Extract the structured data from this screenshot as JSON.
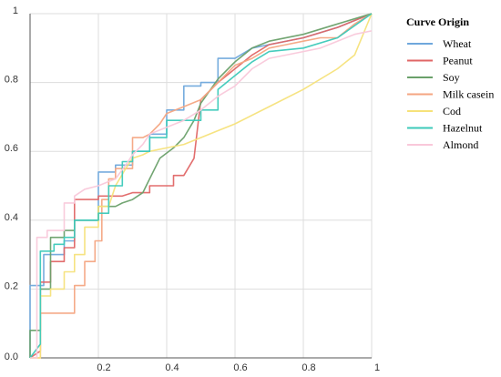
{
  "chart_data": {
    "type": "line",
    "xlim": [
      0,
      1
    ],
    "ylim": [
      0,
      1
    ],
    "x_ticks": [
      "0.2",
      "0.4",
      "0.6",
      "0.8",
      "1"
    ],
    "y_ticks": [
      "0.0",
      "0.2",
      "0.4",
      "0.6",
      "0.8",
      "1"
    ],
    "grid": true,
    "legend_title": "Curve Origin",
    "legend_position": "right",
    "series": [
      {
        "name": "Wheat",
        "color": "#6fa8dc",
        "points": [
          [
            0,
            0
          ],
          [
            0,
            0.21
          ],
          [
            0.04,
            0.21
          ],
          [
            0.04,
            0.3
          ],
          [
            0.1,
            0.3
          ],
          [
            0.1,
            0.34
          ],
          [
            0.13,
            0.34
          ],
          [
            0.13,
            0.4
          ],
          [
            0.2,
            0.4
          ],
          [
            0.2,
            0.54
          ],
          [
            0.25,
            0.54
          ],
          [
            0.25,
            0.56
          ],
          [
            0.3,
            0.56
          ],
          [
            0.3,
            0.6
          ],
          [
            0.35,
            0.6
          ],
          [
            0.35,
            0.65
          ],
          [
            0.4,
            0.65
          ],
          [
            0.4,
            0.72
          ],
          [
            0.45,
            0.72
          ],
          [
            0.45,
            0.79
          ],
          [
            0.5,
            0.79
          ],
          [
            0.5,
            0.8
          ],
          [
            0.55,
            0.8
          ],
          [
            0.55,
            0.87
          ],
          [
            0.6,
            0.87
          ],
          [
            0.65,
            0.9
          ],
          [
            0.7,
            0.91
          ],
          [
            0.8,
            0.93
          ],
          [
            0.9,
            0.96
          ],
          [
            1,
            1
          ]
        ]
      },
      {
        "name": "Peanut",
        "color": "#e06666",
        "points": [
          [
            0,
            0
          ],
          [
            0.03,
            0.02
          ],
          [
            0.03,
            0.22
          ],
          [
            0.06,
            0.22
          ],
          [
            0.06,
            0.28
          ],
          [
            0.1,
            0.28
          ],
          [
            0.1,
            0.32
          ],
          [
            0.13,
            0.32
          ],
          [
            0.13,
            0.46
          ],
          [
            0.2,
            0.46
          ],
          [
            0.2,
            0.47
          ],
          [
            0.27,
            0.47
          ],
          [
            0.3,
            0.48
          ],
          [
            0.35,
            0.48
          ],
          [
            0.35,
            0.5
          ],
          [
            0.42,
            0.5
          ],
          [
            0.42,
            0.53
          ],
          [
            0.45,
            0.53
          ],
          [
            0.48,
            0.58
          ],
          [
            0.5,
            0.75
          ],
          [
            0.55,
            0.8
          ],
          [
            0.6,
            0.84
          ],
          [
            0.65,
            0.88
          ],
          [
            0.7,
            0.91
          ],
          [
            0.8,
            0.93
          ],
          [
            0.9,
            0.96
          ],
          [
            1,
            1
          ]
        ]
      },
      {
        "name": "Soy",
        "color": "#6aa06a",
        "points": [
          [
            0,
            0
          ],
          [
            0,
            0.08
          ],
          [
            0.03,
            0.08
          ],
          [
            0.03,
            0.2
          ],
          [
            0.06,
            0.2
          ],
          [
            0.06,
            0.35
          ],
          [
            0.1,
            0.35
          ],
          [
            0.1,
            0.37
          ],
          [
            0.13,
            0.37
          ],
          [
            0.13,
            0.4
          ],
          [
            0.2,
            0.4
          ],
          [
            0.2,
            0.44
          ],
          [
            0.25,
            0.44
          ],
          [
            0.27,
            0.45
          ],
          [
            0.3,
            0.46
          ],
          [
            0.33,
            0.48
          ],
          [
            0.35,
            0.52
          ],
          [
            0.38,
            0.58
          ],
          [
            0.42,
            0.61
          ],
          [
            0.45,
            0.64
          ],
          [
            0.48,
            0.69
          ],
          [
            0.5,
            0.74
          ],
          [
            0.55,
            0.81
          ],
          [
            0.6,
            0.86
          ],
          [
            0.65,
            0.9
          ],
          [
            0.7,
            0.92
          ],
          [
            0.8,
            0.94
          ],
          [
            0.9,
            0.97
          ],
          [
            1,
            1
          ]
        ]
      },
      {
        "name": "Milk casein",
        "color": "#f4a582",
        "points": [
          [
            0,
            0
          ],
          [
            0.03,
            0
          ],
          [
            0.03,
            0.13
          ],
          [
            0.13,
            0.13
          ],
          [
            0.13,
            0.21
          ],
          [
            0.16,
            0.21
          ],
          [
            0.16,
            0.28
          ],
          [
            0.19,
            0.28
          ],
          [
            0.19,
            0.34
          ],
          [
            0.21,
            0.34
          ],
          [
            0.21,
            0.46
          ],
          [
            0.23,
            0.46
          ],
          [
            0.23,
            0.52
          ],
          [
            0.25,
            0.52
          ],
          [
            0.25,
            0.55
          ],
          [
            0.3,
            0.55
          ],
          [
            0.3,
            0.64
          ],
          [
            0.33,
            0.64
          ],
          [
            0.35,
            0.65
          ],
          [
            0.38,
            0.68
          ],
          [
            0.4,
            0.71
          ],
          [
            0.45,
            0.73
          ],
          [
            0.5,
            0.75
          ],
          [
            0.55,
            0.8
          ],
          [
            0.6,
            0.85
          ],
          [
            0.65,
            0.87
          ],
          [
            0.7,
            0.9
          ],
          [
            0.75,
            0.91
          ],
          [
            0.8,
            0.92
          ],
          [
            0.85,
            0.93
          ],
          [
            0.9,
            0.93
          ],
          [
            0.95,
            0.97
          ],
          [
            1,
            1
          ]
        ]
      },
      {
        "name": "Cod",
        "color": "#f6e27a",
        "points": [
          [
            0,
            0
          ],
          [
            0.03,
            0
          ],
          [
            0.03,
            0.18
          ],
          [
            0.06,
            0.18
          ],
          [
            0.06,
            0.2
          ],
          [
            0.1,
            0.2
          ],
          [
            0.1,
            0.25
          ],
          [
            0.13,
            0.25
          ],
          [
            0.13,
            0.3
          ],
          [
            0.16,
            0.3
          ],
          [
            0.16,
            0.38
          ],
          [
            0.2,
            0.38
          ],
          [
            0.2,
            0.44
          ],
          [
            0.23,
            0.44
          ],
          [
            0.25,
            0.5
          ],
          [
            0.28,
            0.55
          ],
          [
            0.3,
            0.58
          ],
          [
            0.33,
            0.59
          ],
          [
            0.35,
            0.6
          ],
          [
            0.4,
            0.61
          ],
          [
            0.45,
            0.62
          ],
          [
            0.5,
            0.64
          ],
          [
            0.55,
            0.66
          ],
          [
            0.6,
            0.68
          ],
          [
            0.7,
            0.73
          ],
          [
            0.8,
            0.78
          ],
          [
            0.9,
            0.84
          ],
          [
            0.95,
            0.88
          ],
          [
            1,
            1
          ]
        ]
      },
      {
        "name": "Hazelnut",
        "color": "#3cc9b9",
        "points": [
          [
            0,
            0
          ],
          [
            0.03,
            0.04
          ],
          [
            0.03,
            0.31
          ],
          [
            0.07,
            0.31
          ],
          [
            0.07,
            0.33
          ],
          [
            0.1,
            0.33
          ],
          [
            0.1,
            0.35
          ],
          [
            0.13,
            0.35
          ],
          [
            0.13,
            0.4
          ],
          [
            0.2,
            0.4
          ],
          [
            0.2,
            0.42
          ],
          [
            0.23,
            0.42
          ],
          [
            0.23,
            0.5
          ],
          [
            0.27,
            0.5
          ],
          [
            0.27,
            0.57
          ],
          [
            0.3,
            0.57
          ],
          [
            0.3,
            0.6
          ],
          [
            0.35,
            0.6
          ],
          [
            0.35,
            0.64
          ],
          [
            0.4,
            0.64
          ],
          [
            0.4,
            0.69
          ],
          [
            0.5,
            0.69
          ],
          [
            0.5,
            0.72
          ],
          [
            0.55,
            0.72
          ],
          [
            0.55,
            0.78
          ],
          [
            0.6,
            0.82
          ],
          [
            0.65,
            0.86
          ],
          [
            0.7,
            0.89
          ],
          [
            0.8,
            0.9
          ],
          [
            0.9,
            0.93
          ],
          [
            1,
            1
          ]
        ]
      },
      {
        "name": "Almond",
        "color": "#f9c8da",
        "points": [
          [
            0,
            0
          ],
          [
            0.02,
            0
          ],
          [
            0.02,
            0.35
          ],
          [
            0.05,
            0.35
          ],
          [
            0.05,
            0.37
          ],
          [
            0.1,
            0.37
          ],
          [
            0.1,
            0.45
          ],
          [
            0.13,
            0.45
          ],
          [
            0.13,
            0.47
          ],
          [
            0.16,
            0.49
          ],
          [
            0.2,
            0.5
          ],
          [
            0.25,
            0.52
          ],
          [
            0.28,
            0.56
          ],
          [
            0.3,
            0.59
          ],
          [
            0.33,
            0.62
          ],
          [
            0.35,
            0.65
          ],
          [
            0.4,
            0.67
          ],
          [
            0.45,
            0.69
          ],
          [
            0.5,
            0.72
          ],
          [
            0.55,
            0.76
          ],
          [
            0.6,
            0.79
          ],
          [
            0.65,
            0.84
          ],
          [
            0.7,
            0.87
          ],
          [
            0.75,
            0.88
          ],
          [
            0.8,
            0.89
          ],
          [
            0.85,
            0.9
          ],
          [
            0.9,
            0.92
          ],
          [
            0.95,
            0.94
          ],
          [
            1,
            0.95
          ]
        ]
      }
    ]
  }
}
